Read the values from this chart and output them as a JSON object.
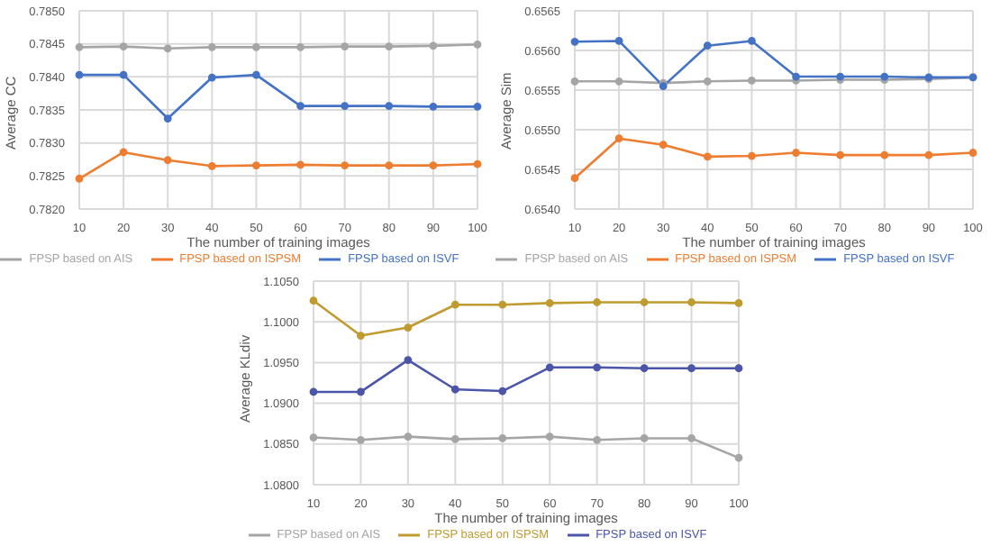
{
  "chart_data": [
    {
      "type": "line",
      "xlabel": "The number of training images",
      "ylabel": "Average CC",
      "categories": [
        "10",
        "20",
        "30",
        "40",
        "50",
        "60",
        "70",
        "80",
        "90",
        "100"
      ],
      "series": [
        {
          "name": "FPSP based on ISVF",
          "color": "#4472c4",
          "values": [
            0.78403,
            0.78403,
            0.78337,
            0.78399,
            0.78403,
            0.78356,
            0.78356,
            0.78356,
            0.78355,
            0.78355
          ]
        },
        {
          "name": "FPSP based on ISPSM",
          "color": "#ed7d31",
          "values": [
            0.78246,
            0.78286,
            0.78274,
            0.78265,
            0.78266,
            0.78267,
            0.78266,
            0.78266,
            0.78266,
            0.78268
          ]
        },
        {
          "name": "FPSP based on AIS",
          "color": "#a5a5a5",
          "values": [
            0.78445,
            0.78446,
            0.78443,
            0.78445,
            0.78445,
            0.78445,
            0.78446,
            0.78446,
            0.78447,
            0.78449
          ]
        }
      ],
      "ylim": [
        0.782,
        0.785
      ],
      "yticks": [
        {
          "value": 0.782,
          "label": "0.7820"
        },
        {
          "value": 0.7825,
          "label": "0.7825"
        },
        {
          "value": 0.783,
          "label": "0.7830"
        },
        {
          "value": 0.7835,
          "label": "0.7835"
        },
        {
          "value": 0.784,
          "label": "0.7840"
        },
        {
          "value": 0.7845,
          "label": "0.7845"
        },
        {
          "value": 0.785,
          "label": "0.7850"
        }
      ],
      "grid": true,
      "legend": "bottom",
      "marker": "circle"
    },
    {
      "type": "line",
      "xlabel": "The number of training images",
      "ylabel": "Average Sim",
      "categories": [
        "10",
        "20",
        "30",
        "40",
        "50",
        "60",
        "70",
        "80",
        "90",
        "100"
      ],
      "series": [
        {
          "name": "FPSP based on ISVF",
          "color": "#4472c4",
          "values": [
            0.65611,
            0.65612,
            0.65555,
            0.65606,
            0.65612,
            0.65567,
            0.65567,
            0.65567,
            0.65566,
            0.65566
          ]
        },
        {
          "name": "FPSP based on ISPSM",
          "color": "#ed7d31",
          "values": [
            0.65439,
            0.65489,
            0.65481,
            0.65466,
            0.65467,
            0.65471,
            0.65468,
            0.65468,
            0.65468,
            0.65471
          ]
        },
        {
          "name": "FPSP based on AIS",
          "color": "#a5a5a5",
          "values": [
            0.65561,
            0.65561,
            0.65559,
            0.65561,
            0.65562,
            0.65562,
            0.65563,
            0.65563,
            0.65564,
            0.65566
          ]
        }
      ],
      "ylim": [
        0.654,
        0.6565
      ],
      "yticks": [
        {
          "value": 0.654,
          "label": "0.6540"
        },
        {
          "value": 0.6545,
          "label": "0.6545"
        },
        {
          "value": 0.655,
          "label": "0.6550"
        },
        {
          "value": 0.6555,
          "label": "0.6555"
        },
        {
          "value": 0.656,
          "label": "0.6560"
        },
        {
          "value": 0.6565,
          "label": "0.6565"
        }
      ],
      "grid": true,
      "legend": "bottom",
      "marker": "circle"
    },
    {
      "type": "line",
      "xlabel": "The number of training images",
      "ylabel": "Average KLdiv",
      "categories": [
        "10",
        "20",
        "30",
        "40",
        "50",
        "60",
        "70",
        "80",
        "90",
        "100"
      ],
      "series": [
        {
          "name": "FPSP based on ISVF",
          "color": "#4b56a8",
          "values": [
            1.0914,
            1.0914,
            1.0953,
            1.0917,
            1.0915,
            1.0944,
            1.0944,
            1.0943,
            1.0943,
            1.0943
          ]
        },
        {
          "name": "FPSP based on ISPSM",
          "color": "#bf9b30",
          "values": [
            1.1026,
            1.0983,
            1.0993,
            1.1021,
            1.1021,
            1.1023,
            1.1024,
            1.1024,
            1.1024,
            1.1023
          ]
        },
        {
          "name": "FPSP based on AIS",
          "color": "#a5a5a5",
          "values": [
            1.0858,
            1.0855,
            1.0859,
            1.0856,
            1.0857,
            1.0859,
            1.0855,
            1.0857,
            1.0857,
            1.0833
          ]
        }
      ],
      "ylim": [
        1.08,
        1.105
      ],
      "yticks": [
        {
          "value": 1.08,
          "label": "1.0800"
        },
        {
          "value": 1.085,
          "label": "1.0850"
        },
        {
          "value": 1.09,
          "label": "1.0900"
        },
        {
          "value": 1.095,
          "label": "1.0950"
        },
        {
          "value": 1.1,
          "label": "1.1000"
        },
        {
          "value": 1.105,
          "label": "1.1050"
        }
      ],
      "grid": true,
      "legend": "bottom",
      "marker": "circle"
    }
  ]
}
